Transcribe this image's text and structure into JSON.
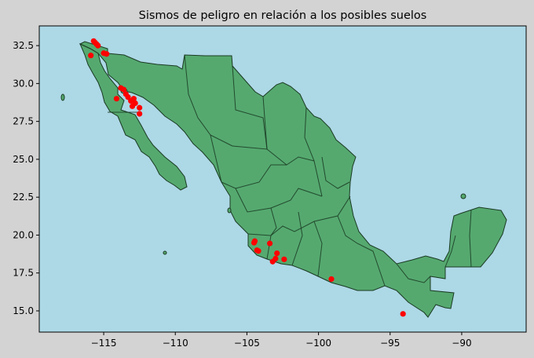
{
  "figure": {
    "background": "#d3d3d3",
    "title": "Sismos de peligro en relación a los posibles suelos"
  },
  "map": {
    "ocean_color": "#add8e6",
    "land_color": "#55a96f",
    "border_color": "#1a3a22",
    "xlim": [
      -119.5,
      -85.5
    ],
    "ylim": [
      13.6,
      33.8
    ]
  },
  "chart_data": {
    "type": "scatter",
    "title": "Sismos de peligro en relación a los posibles suelos",
    "xlabel": "",
    "ylabel": "",
    "xlim": [
      -119.5,
      -85.5
    ],
    "ylim": [
      13.6,
      33.8
    ],
    "x_ticks": [
      -115,
      -110,
      -105,
      -100,
      -95,
      -90
    ],
    "x_tick_labels": [
      "−115",
      "−110",
      "−105",
      "−100",
      "−95",
      "−90"
    ],
    "y_ticks": [
      15.0,
      17.5,
      20.0,
      22.5,
      25.0,
      27.5,
      30.0,
      32.5
    ],
    "y_tick_labels": [
      "15.0",
      "17.5",
      "20.0",
      "22.5",
      "25.0",
      "27.5",
      "30.0",
      "32.5"
    ],
    "grid": false,
    "marker_color": "#ff0000",
    "series": [
      {
        "points": [
          [
            -115.7,
            32.8
          ],
          [
            -115.6,
            32.7
          ],
          [
            -115.5,
            32.6
          ],
          [
            -115.4,
            32.5
          ],
          [
            -115.9,
            31.85
          ],
          [
            -115.0,
            32.0
          ],
          [
            -114.8,
            31.95
          ],
          [
            -113.8,
            29.7
          ],
          [
            -113.6,
            29.6
          ],
          [
            -113.45,
            29.3
          ],
          [
            -113.3,
            29.1
          ],
          [
            -113.1,
            28.85
          ],
          [
            -112.9,
            29.0
          ],
          [
            -112.8,
            28.7
          ],
          [
            -113.0,
            28.5
          ],
          [
            -114.1,
            29.0
          ],
          [
            -112.5,
            28.4
          ],
          [
            -112.5,
            28.0
          ],
          [
            -104.5,
            19.5
          ],
          [
            -104.45,
            19.6
          ],
          [
            -104.3,
            19.0
          ],
          [
            -104.2,
            18.95
          ],
          [
            -103.4,
            19.45
          ],
          [
            -102.9,
            18.8
          ],
          [
            -103.0,
            18.45
          ],
          [
            -103.2,
            18.25
          ],
          [
            -102.4,
            18.4
          ],
          [
            -99.1,
            17.1
          ],
          [
            -94.1,
            14.8
          ]
        ]
      }
    ]
  }
}
